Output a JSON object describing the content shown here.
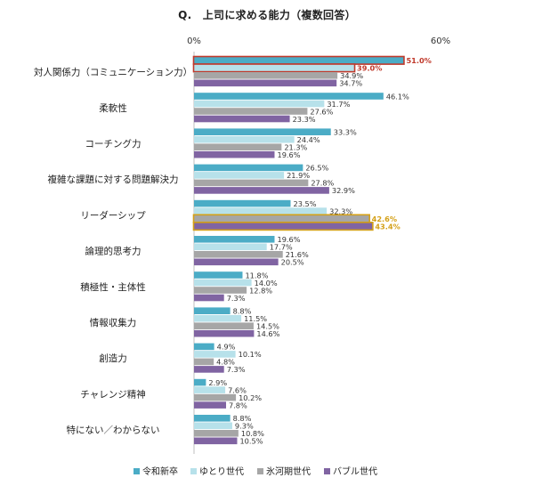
{
  "chart_data": {
    "type": "bar",
    "orientation": "horizontal",
    "title": "Q.　上司に求める能力（複数回答）",
    "xlim": [
      0,
      60
    ],
    "axis_tick_labels": [
      "0%",
      "60%"
    ],
    "grid": false,
    "legend_position": "bottom",
    "categories": [
      "対人関係力（コミュニケーション力）",
      "柔軟性",
      "コーチング力",
      "複雑な課題に対する問題解決力",
      "リーダーシップ",
      "論理的思考力",
      "積極性・主体性",
      "情報収集力",
      "創造力",
      "チャレンジ精神",
      "特にない／わからない"
    ],
    "series": [
      {
        "name": "令和新卒",
        "color": "#4bacc6",
        "values": [
          51.0,
          46.1,
          33.3,
          26.5,
          23.5,
          19.6,
          11.8,
          8.8,
          4.9,
          2.9,
          8.8
        ],
        "labels": [
          "51.0%",
          "46.1%",
          "33.3%",
          "26.5%",
          "23.5%",
          "19.6%",
          "11.8%",
          "8.8%",
          "4.9%",
          "2.9%",
          "8.8%"
        ]
      },
      {
        "name": "ゆとり世代",
        "color": "#b7e1ea",
        "values": [
          39.0,
          31.7,
          24.4,
          21.9,
          32.3,
          17.7,
          14.0,
          11.5,
          10.1,
          7.6,
          9.3
        ],
        "labels": [
          "39.0%",
          "31.7%",
          "24.4%",
          "21.9%",
          "32.3%",
          "17.7%",
          "14.0%",
          "11.5%",
          "10.1%",
          "7.6%",
          "9.3%"
        ]
      },
      {
        "name": "氷河期世代",
        "color": "#a6a6a6",
        "values": [
          34.9,
          27.6,
          21.3,
          27.8,
          42.6,
          21.6,
          12.8,
          14.5,
          4.8,
          10.2,
          10.8
        ],
        "labels": [
          "34.9%",
          "27.6%",
          "21.3%",
          "27.8%",
          "42.6%",
          "21.6%",
          "12.8%",
          "14.5%",
          "4.8%",
          "10.2%",
          "10.8%"
        ]
      },
      {
        "name": "バブル世代",
        "color": "#8064a2",
        "values": [
          34.7,
          23.3,
          19.6,
          32.9,
          43.4,
          20.5,
          7.3,
          14.6,
          7.3,
          7.8,
          10.5
        ],
        "labels": [
          "34.7%",
          "23.3%",
          "19.6%",
          "32.9%",
          "43.4%",
          "20.5%",
          "7.3%",
          "14.6%",
          "7.3%",
          "7.8%",
          "10.5%"
        ]
      }
    ],
    "highlights": [
      {
        "category_index": 0,
        "series_index": 0,
        "box_color": "#c0392b",
        "label_color": "#c0392b"
      },
      {
        "category_index": 0,
        "series_index": 1,
        "box_color": "#c0392b",
        "label_color": "#c0392b"
      },
      {
        "category_index": 4,
        "series_index": 2,
        "box_color": "#d4a017",
        "label_color": "#d4a017"
      },
      {
        "category_index": 4,
        "series_index": 3,
        "box_color": "#d4a017",
        "label_color": "#d4a017"
      }
    ]
  }
}
